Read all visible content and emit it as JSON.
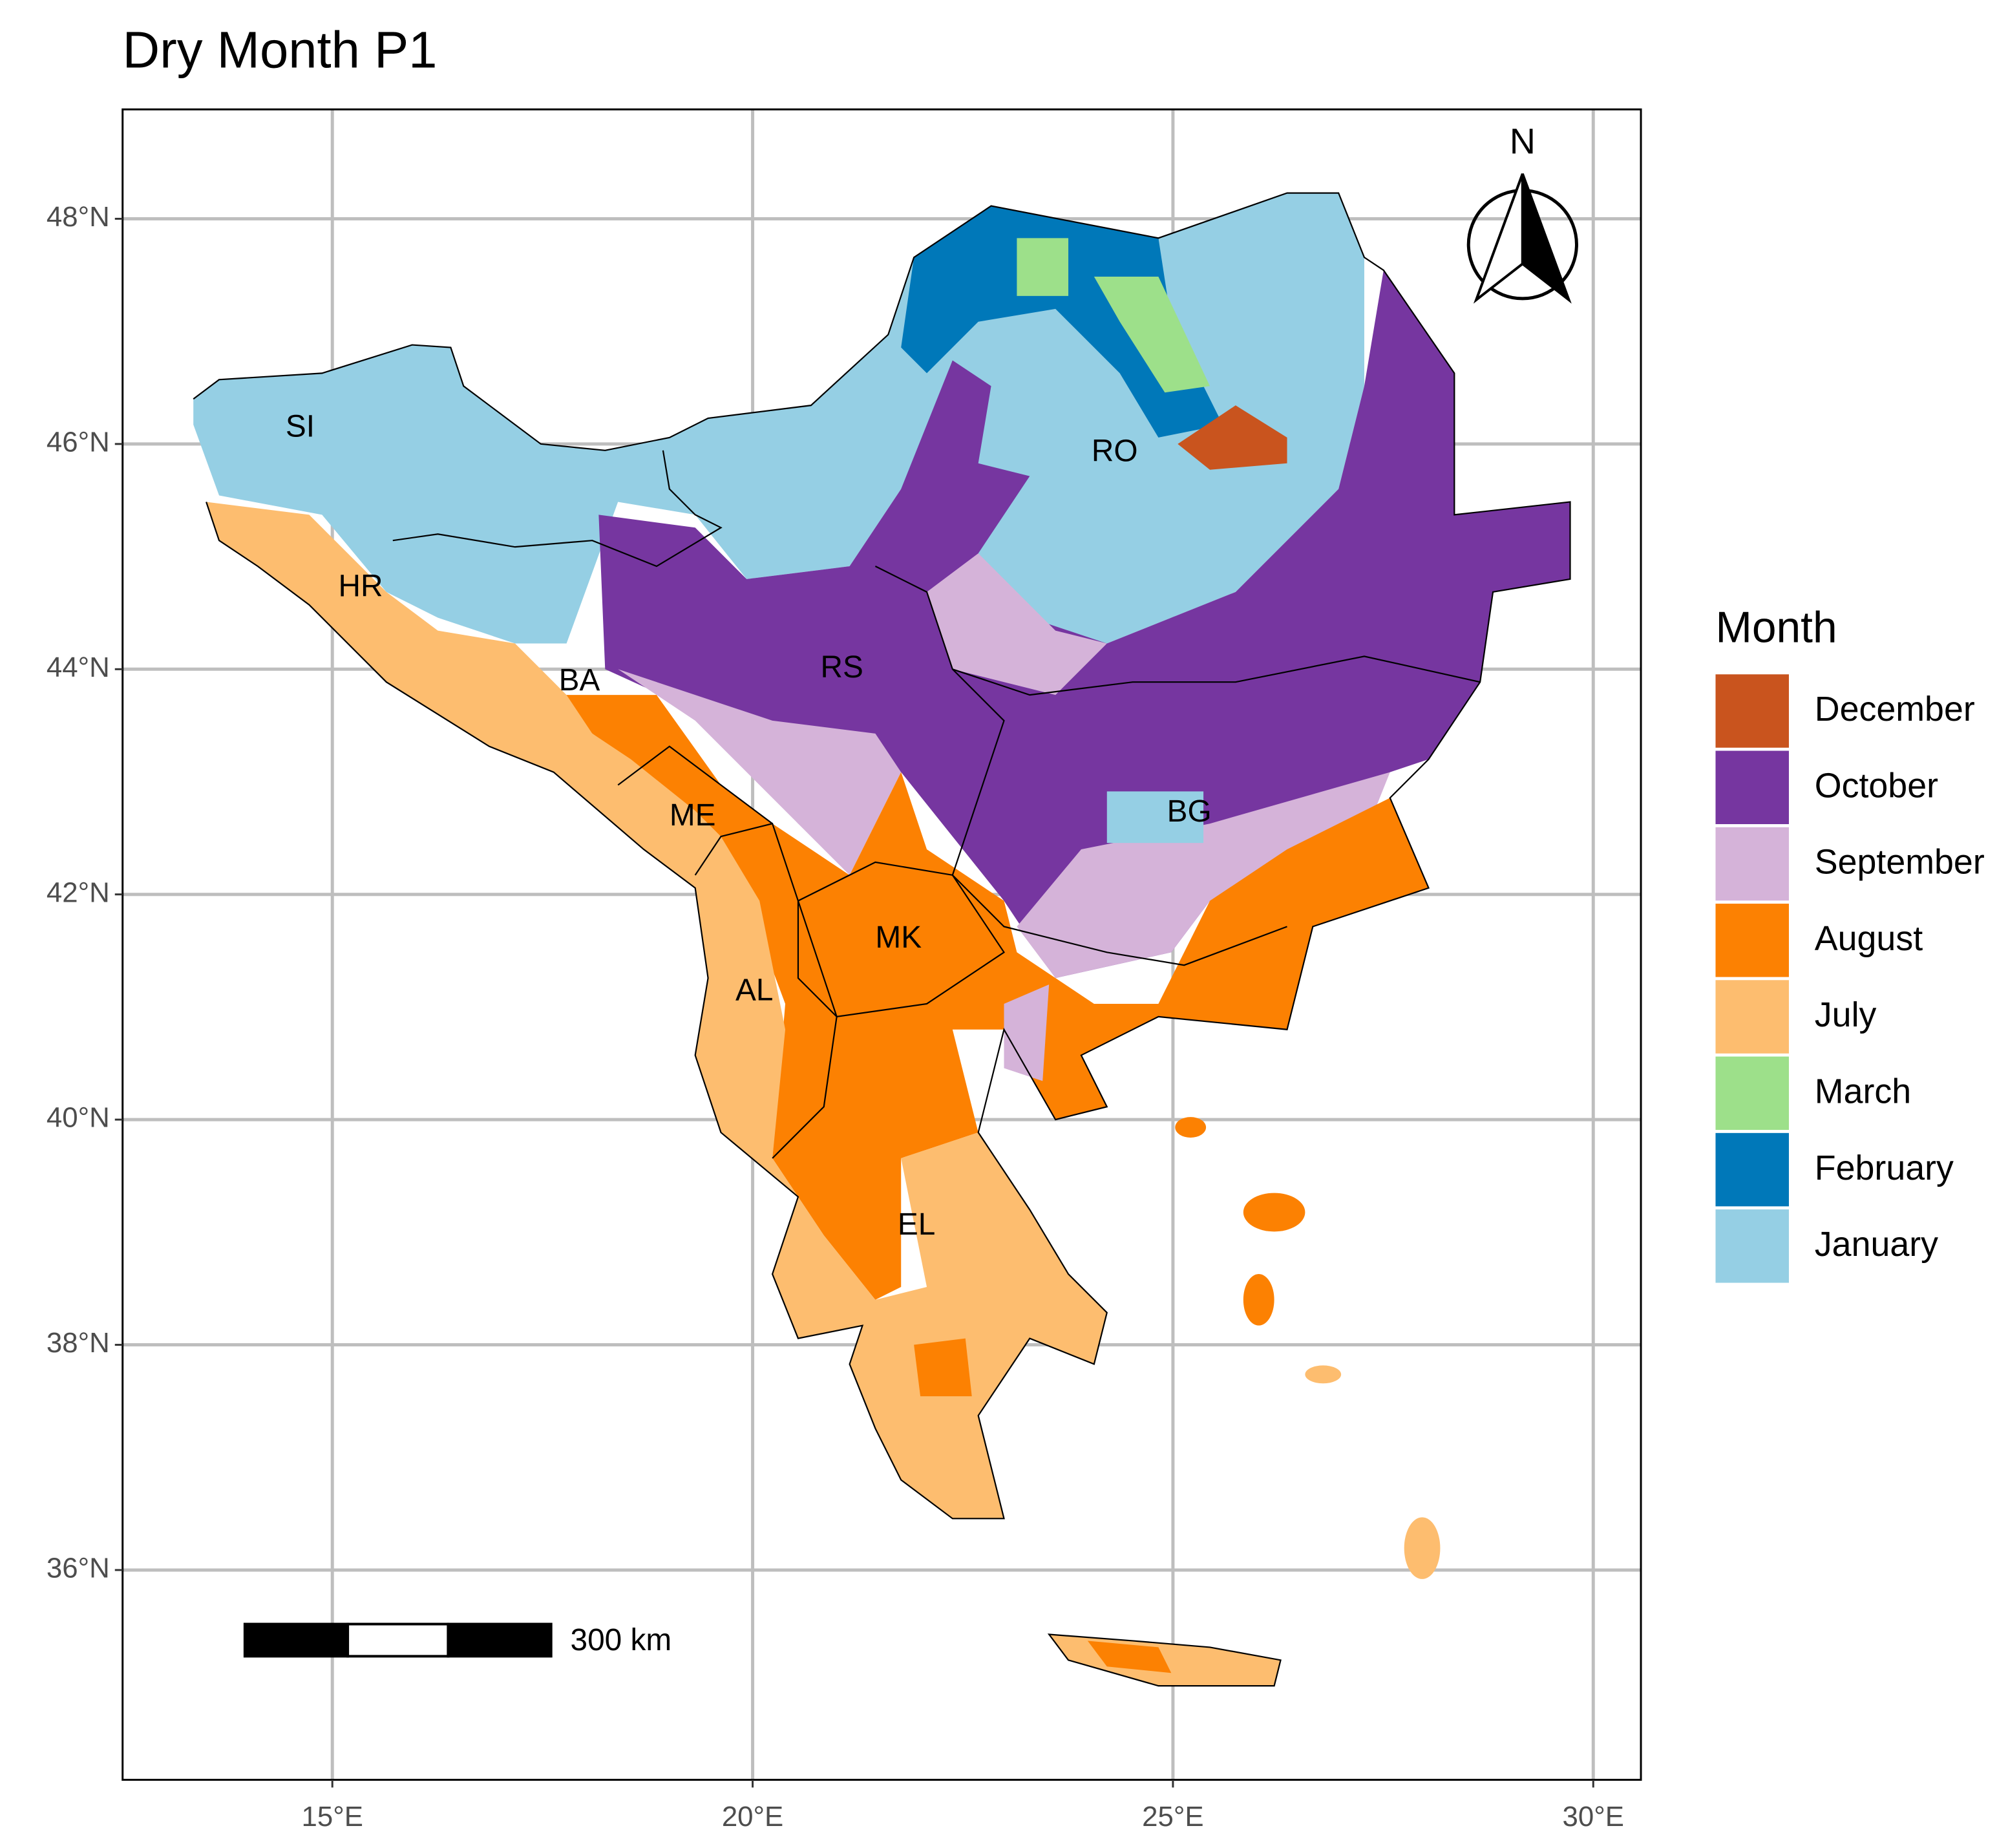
{
  "title": "Dry Month P1",
  "map": {
    "xticks": [
      {
        "value": 15,
        "label": "15°E"
      },
      {
        "value": 20,
        "label": "20°E"
      },
      {
        "value": 25,
        "label": "25°E"
      },
      {
        "value": 30,
        "label": "30°E"
      }
    ],
    "yticks": [
      {
        "value": 36,
        "label": "36°N"
      },
      {
        "value": 38,
        "label": "38°N"
      },
      {
        "value": 40,
        "label": "40°N"
      },
      {
        "value": 42,
        "label": "42°N"
      },
      {
        "value": 44,
        "label": "44°N"
      },
      {
        "value": 46,
        "label": "46°N"
      },
      {
        "value": 48,
        "label": "48°N"
      }
    ],
    "regions": [
      "SI",
      "HR",
      "BA",
      "ME",
      "AL",
      "MK",
      "EL",
      "RS",
      "RO",
      "BG"
    ]
  },
  "legend": {
    "title": "Month",
    "items": [
      {
        "label": "December",
        "color": "#c9541e"
      },
      {
        "label": "October",
        "color": "#7636a0"
      },
      {
        "label": "September",
        "color": "#d5b3d9"
      },
      {
        "label": "August",
        "color": "#fc8102"
      },
      {
        "label": "July",
        "color": "#fdbd6f"
      },
      {
        "label": "March",
        "color": "#9de08a"
      },
      {
        "label": "February",
        "color": "#0078b9"
      },
      {
        "label": "January",
        "color": "#95cfe4"
      }
    ]
  },
  "scale_bar": {
    "label": "300 km"
  },
  "north_arrow": {
    "label": "N"
  }
}
